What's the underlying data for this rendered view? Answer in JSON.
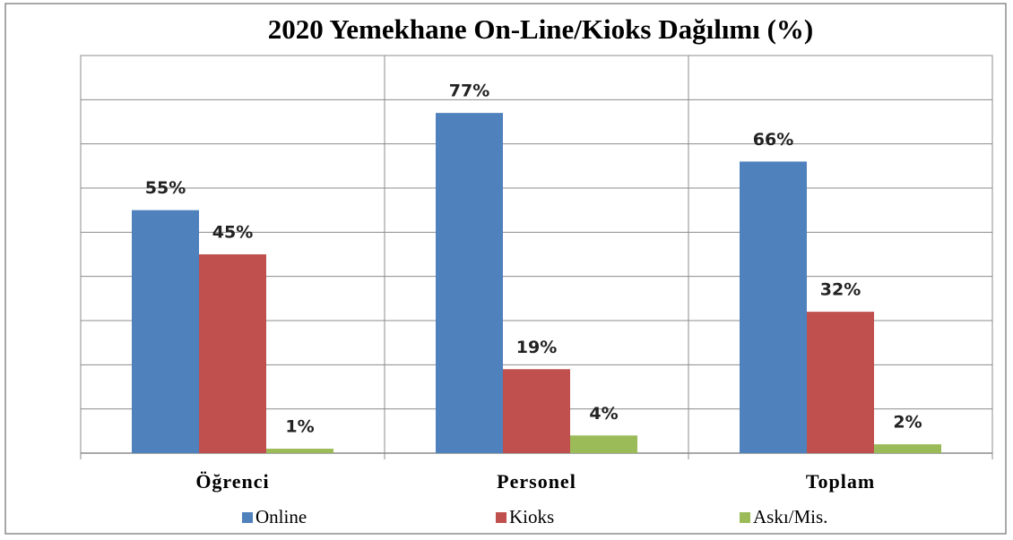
{
  "chart_data": {
    "type": "bar",
    "title": "2020 Yemekhane On-Line/Kioks Dağılımı (%)",
    "categories": [
      "Öğrenci",
      "Personel",
      "Toplam"
    ],
    "series": [
      {
        "name": "Online",
        "color": "#4f81bd",
        "values": [
          55,
          77,
          66
        ],
        "value_labels": [
          "55%",
          "77%",
          "66%"
        ]
      },
      {
        "name": "Kioks",
        "color": "#c0504d",
        "values": [
          45,
          19,
          32
        ],
        "value_labels": [
          "45%",
          "19%",
          "32%"
        ]
      },
      {
        "name": "Askı/Mis.",
        "color": "#9bbb59",
        "values": [
          1,
          4,
          2
        ],
        "value_labels": [
          "1%",
          "4%",
          "2%"
        ]
      }
    ],
    "ylim": [
      0,
      90
    ],
    "yticks": [
      0,
      10,
      20,
      30,
      40,
      50,
      60,
      70,
      80,
      90
    ],
    "grid": true,
    "legend": "bottom"
  }
}
